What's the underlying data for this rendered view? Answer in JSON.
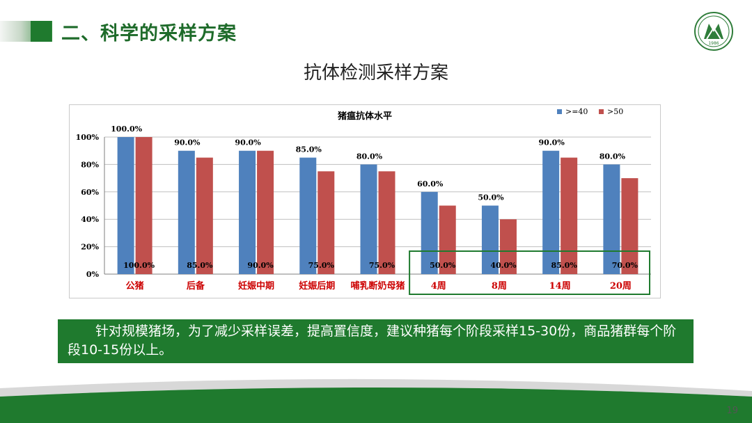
{
  "slide": {
    "title": "二、科学的采样方案",
    "subtitle": "抗体检测采样方案",
    "note": "针对规模猪场，为了减少采样误差，提高置信度，建议种猪每个阶段采样15-30份，商品猪群每个阶段10-15份以上。",
    "page_number": "19",
    "logo_text": "1986"
  },
  "colors": {
    "brand_green": "#1f7a2e",
    "series_blue": "#4f81bd",
    "series_red": "#c0504d",
    "category_label": "#cc0000"
  },
  "chart_data": {
    "type": "bar",
    "title": "猪瘟抗体水平",
    "categories": [
      "公猪",
      "后备",
      "妊娠中期",
      "妊娠后期",
      "哺乳断奶母猪",
      "4周",
      "8周",
      "14周",
      "20周"
    ],
    "series": [
      {
        "name": ">=40",
        "values": [
          100,
          90,
          90,
          85,
          80,
          60,
          50,
          90,
          80
        ],
        "labels": [
          "100.0%",
          "90.0%",
          "90.0%",
          "85.0%",
          "80.0%",
          "60.0%",
          "50.0%",
          "90.0%",
          "80.0%"
        ]
      },
      {
        "name": ">50",
        "values": [
          100,
          85,
          90,
          75,
          75,
          50,
          40,
          85,
          70
        ],
        "labels": [
          "100.0%",
          "85.0%",
          "90.0%",
          "75.0%",
          "75.0%",
          "50.0%",
          "40.0%",
          "85.0%",
          "70.0%"
        ]
      }
    ],
    "y_ticks": [
      "0%",
      "20%",
      "40%",
      "60%",
      "80%",
      "100%"
    ],
    "ylim": [
      0,
      100
    ],
    "highlight": {
      "from_category": 5,
      "to_category": 8
    },
    "legend_position": "top-right",
    "grid": true
  }
}
